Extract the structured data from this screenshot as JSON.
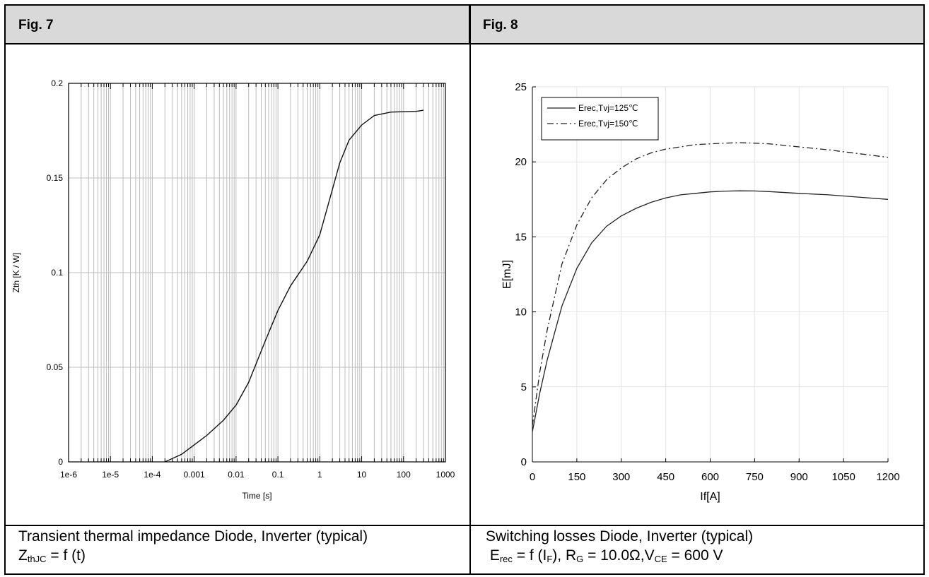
{
  "figures": {
    "fig7": {
      "header": "Fig. 7",
      "caption_line1": "Transient thermal impedance Diode, Inverter (typical)",
      "caption_line2": {
        "main": "Z",
        "sub": "thJC",
        "rest": " = f (t)"
      }
    },
    "fig8": {
      "header": "Fig. 8",
      "caption_line1": "Switching losses Diode, Inverter (typical)",
      "caption_line2": {
        "e": " E",
        "e_sub": "rec",
        "e_rest": " = f (I",
        "if_sub": "F",
        "rg": "), R",
        "rg_sub": "G",
        "rg_rest": " = 10.0Ω,V",
        "vce_sub": "CE",
        "vce_rest": " = 600 V"
      }
    }
  },
  "chart_data": [
    {
      "type": "line",
      "xscale": "log",
      "xlabel": "Time [s]",
      "ylabel": "Zth [K / W]",
      "xlim": [
        1e-06,
        1000
      ],
      "ylim": [
        0,
        0.2
      ],
      "xticks": [
        1e-06,
        1e-05,
        0.0001,
        0.001,
        0.01,
        0.1,
        1,
        10,
        100,
        1000
      ],
      "xtick_labels": [
        "1e-6",
        "1e-5",
        "1e-4",
        "0.001",
        "0.01",
        "0.1",
        "1",
        "10",
        "100",
        "1000"
      ],
      "yticks": [
        0,
        0.05,
        0.1,
        0.15,
        0.2
      ],
      "ytick_labels": [
        "0",
        "0.05",
        "0.1",
        "0.15",
        "0.2"
      ],
      "grid": true,
      "series": [
        {
          "x": [
            0.0002,
            0.0005,
            0.001,
            0.002,
            0.005,
            0.01,
            0.02,
            0.05,
            0.1,
            0.2,
            0.5,
            1,
            2,
            3,
            5,
            10,
            20,
            50,
            100,
            200,
            300
          ],
          "y": [
            0,
            0.004,
            0.009,
            0.014,
            0.022,
            0.03,
            0.042,
            0.064,
            0.08,
            0.093,
            0.106,
            0.12,
            0.144,
            0.158,
            0.17,
            0.178,
            0.183,
            0.1848,
            0.185,
            0.1852,
            0.1858
          ]
        }
      ]
    },
    {
      "type": "line",
      "xlabel": "If[A]",
      "ylabel": "E[mJ]",
      "xlim": [
        0,
        1200
      ],
      "ylim": [
        0,
        25
      ],
      "xticks": [
        0,
        150,
        300,
        450,
        600,
        750,
        900,
        1050,
        1200
      ],
      "yticks": [
        0,
        5,
        10,
        15,
        20,
        25
      ],
      "grid": true,
      "legend": "top-left",
      "series": [
        {
          "name": "Erec,Tvj=125℃",
          "style": "solid",
          "x": [
            0,
            25,
            50,
            100,
            150,
            200,
            250,
            300,
            350,
            400,
            450,
            500,
            550,
            600,
            650,
            700,
            750,
            800,
            900,
            1000,
            1100,
            1200
          ],
          "y": [
            2,
            4.6,
            6.8,
            10.4,
            12.9,
            14.6,
            15.7,
            16.4,
            16.9,
            17.3,
            17.6,
            17.8,
            17.9,
            18,
            18.05,
            18.07,
            18.06,
            18.02,
            17.9,
            17.8,
            17.65,
            17.5
          ]
        },
        {
          "name": "Erec,Tvj=150℃",
          "style": "dashdot",
          "x": [
            0,
            25,
            50,
            100,
            150,
            200,
            250,
            300,
            350,
            400,
            450,
            500,
            550,
            600,
            650,
            700,
            750,
            800,
            900,
            1000,
            1100,
            1200
          ],
          "y": [
            2.4,
            6,
            8.8,
            13.2,
            15.8,
            17.6,
            18.8,
            19.6,
            20.2,
            20.6,
            20.85,
            21.0,
            21.15,
            21.2,
            21.25,
            21.28,
            21.25,
            21.2,
            21.0,
            20.8,
            20.55,
            20.3
          ]
        }
      ]
    }
  ]
}
